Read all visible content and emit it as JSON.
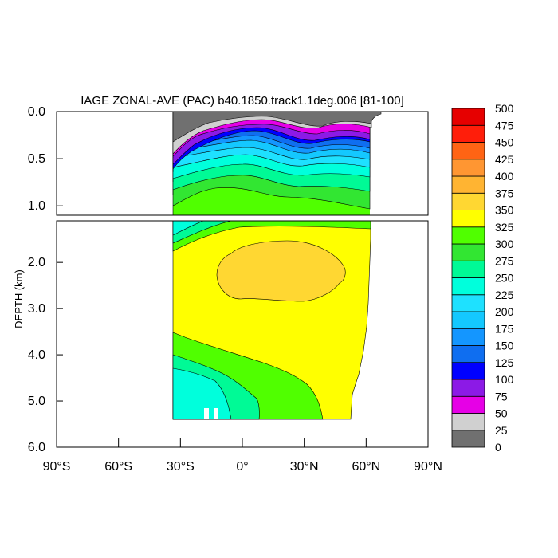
{
  "chart_data": {
    "type": "heatmap",
    "title": "IAGE ZONAL-AVE (PAC) b40.1850.track1.1deg.006 [81-100]",
    "ylabel": "DEPTH (km)",
    "xlabel": "",
    "x_ticks": [
      {
        "v": -90,
        "label": "90°S"
      },
      {
        "v": -60,
        "label": "60°S"
      },
      {
        "v": -30,
        "label": "30°S"
      },
      {
        "v": 0,
        "label": "0°"
      },
      {
        "v": 30,
        "label": "30°N"
      },
      {
        "v": 60,
        "label": "60°N"
      },
      {
        "v": 90,
        "label": "90°N"
      }
    ],
    "xlim": [
      -90,
      90
    ],
    "upper_panel": {
      "ylim": [
        0,
        1.1
      ],
      "y_ticks": [
        {
          "v": 0.0,
          "label": "0.0"
        },
        {
          "v": 0.5,
          "label": "0.5"
        },
        {
          "v": 1.0,
          "label": "1.0"
        }
      ]
    },
    "lower_panel": {
      "ylim": [
        1.1,
        6.0
      ],
      "y_ticks": [
        {
          "v": 2.0,
          "label": "2.0"
        },
        {
          "v": 3.0,
          "label": "3.0"
        },
        {
          "v": 4.0,
          "label": "4.0"
        },
        {
          "v": 5.0,
          "label": "5.0"
        },
        {
          "v": 6.0,
          "label": "6.0"
        }
      ]
    },
    "data_extent": {
      "lat_min": -35,
      "lat_max": 62
    },
    "colorbar": {
      "levels": [
        0,
        25,
        50,
        75,
        100,
        125,
        150,
        175,
        200,
        225,
        250,
        275,
        300,
        325,
        350,
        375,
        400,
        425,
        450,
        475,
        500
      ],
      "labels": [
        "0",
        "25",
        "50",
        "75",
        "100",
        "125",
        "150",
        "175",
        "200",
        "225",
        "250",
        "275",
        "300",
        "325",
        "350",
        "375",
        "400",
        "425",
        "450",
        "475",
        "500"
      ],
      "colors": [
        "#707070",
        "#d0d0d0",
        "#e600e6",
        "#8c1ae6",
        "#0000ff",
        "#0f6ef0",
        "#1496ff",
        "#14c8ff",
        "#1ee1ff",
        "#00ffdc",
        "#00fa96",
        "#32e632",
        "#50ff00",
        "#ffff00",
        "#ffd732",
        "#ffb432",
        "#ff9632",
        "#ff6414",
        "#ff1e0a",
        "#e60000"
      ]
    },
    "age_field_description_omitted": true
  }
}
